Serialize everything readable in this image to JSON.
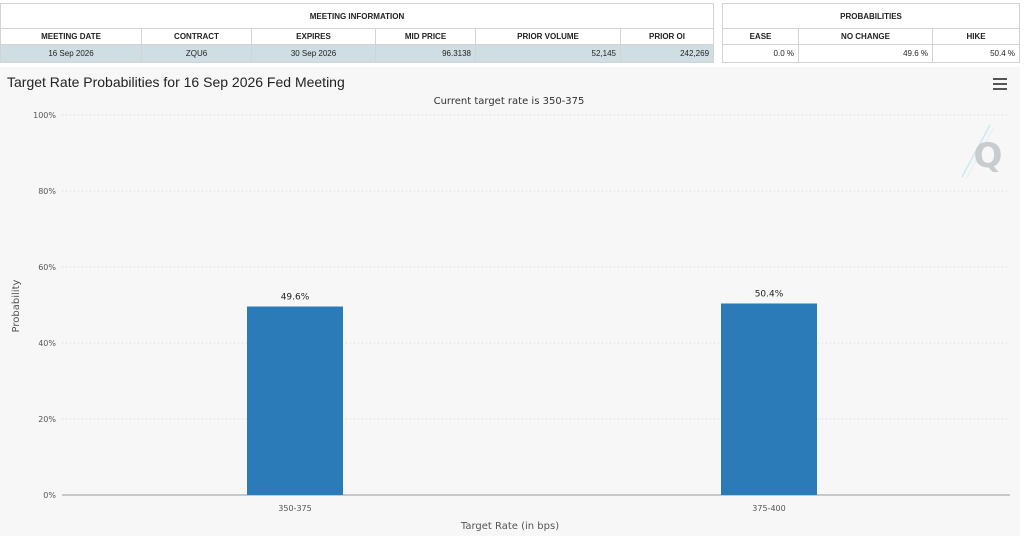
{
  "meeting_info": {
    "group_title": "MEETING INFORMATION",
    "headers": [
      "MEETING DATE",
      "CONTRACT",
      "EXPIRES",
      "MID PRICE",
      "PRIOR VOLUME",
      "PRIOR OI"
    ],
    "row": [
      "16 Sep 2026",
      "ZQU6",
      "30 Sep 2026",
      "96.3138",
      "52,145",
      "242,269"
    ]
  },
  "probabilities": {
    "group_title": "PROBABILITIES",
    "headers": [
      "EASE",
      "NO CHANGE",
      "HIKE"
    ],
    "row": [
      "0.0 %",
      "49.6 %",
      "50.4 %"
    ]
  },
  "watermark": "Q",
  "colors": {
    "bar": "#2b7bb9",
    "table_row_bg": "#cfdee3",
    "panel_bg": "#f7f7f7"
  },
  "chart_data": {
    "type": "bar",
    "title": "Target Rate Probabilities for 16 Sep 2026 Fed Meeting",
    "subtitle": "Current target rate is 350-375",
    "xlabel": "Target Rate (in bps)",
    "ylabel": "Probability",
    "categories": [
      "350-375",
      "375-400"
    ],
    "values": [
      49.6,
      50.4
    ],
    "data_labels": [
      "49.6%",
      "50.4%"
    ],
    "ylim": [
      0,
      100
    ],
    "yticks": [
      0,
      20,
      40,
      60,
      80,
      100
    ],
    "ytick_labels": [
      "0%",
      "20%",
      "40%",
      "60%",
      "80%",
      "100%"
    ],
    "grid": true,
    "legend": false
  }
}
